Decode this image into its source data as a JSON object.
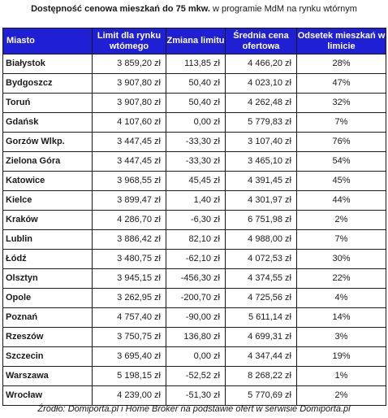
{
  "title": {
    "bold": "Dostępność cenowa mieszkań do 75 mkw.",
    "rest": " w programie MdM na rynku wtórnym"
  },
  "headers": [
    "Miasto",
    "Limit dla rynku wtómego",
    "Zmiana limitu",
    "Średnia cena ofertowa",
    "Odsetek mieszkań w limicie"
  ],
  "rows": [
    [
      "Białystok",
      "3 859,20 zł",
      "113,85 zł",
      "4 466,20 zł",
      "28%"
    ],
    [
      "Bydgoszcz",
      "3 907,80 zł",
      "50,40 zł",
      "4 023,10 zł",
      "47%"
    ],
    [
      "Toruń",
      "3 907,80 zł",
      "50,40 zł",
      "4 262,48 zł",
      "32%"
    ],
    [
      "Gdańsk",
      "4 107,60 zł",
      "0,00 zł",
      "5 779,83 zł",
      "7%"
    ],
    [
      "Gorzów Wlkp.",
      "3 447,45 zł",
      "-33,30 zł",
      "3 107,40 zł",
      "76%"
    ],
    [
      "Zielona Góra",
      "3 447,45 zł",
      "-33,30 zł",
      "3 465,10 zł",
      "54%"
    ],
    [
      "Katowice",
      "3 968,55 zł",
      "45,45 zł",
      "4 391,45 zł",
      "45%"
    ],
    [
      "Kielce",
      "3 899,47 zł",
      "1,40 zł",
      "4 301,97 zł",
      "44%"
    ],
    [
      "Kraków",
      "4 286,70 zł",
      "-6,30 zł",
      "6 751,98 zł",
      "2%"
    ],
    [
      "Lublin",
      "3 886,42 zł",
      "82,10 zł",
      "4 988,00 zł",
      "7%"
    ],
    [
      "Łódź",
      "3 480,75 zł",
      "-62,10 zł",
      "4 072,53 zł",
      "30%"
    ],
    [
      "Olsztyn",
      "3 945,15 zł",
      "-456,30 zł",
      "4 374,55 zł",
      "22%"
    ],
    [
      "Opole",
      "3 262,95 zł",
      "-200,70 zł",
      "4 725,56 zł",
      "4%"
    ],
    [
      "Poznań",
      "4 757,40 zł",
      "-90,00 zł",
      "5 611,14 zł",
      "14%"
    ],
    [
      "Rzeszów",
      "3 750,75 zł",
      "136,80 zł",
      "4 699,31 zł",
      "3%"
    ],
    [
      "Szczecin",
      "3 695,40 zł",
      "0,00 zł",
      "4 347,44 zł",
      "19%"
    ],
    [
      "Warszawa",
      "5 198,15 zł",
      "-52,52 zł",
      "8 268,22 zł",
      "1%"
    ],
    [
      "Wrocław",
      "4 239,00 zł",
      "-51,30 zł",
      "5 770,69 zł",
      "2%"
    ]
  ],
  "footer": "Źródło: Domiporta.pl i Home Broker na podstawie ofert w serwisie Domiporta.pl",
  "colors": {
    "header_bg": "#1f1fd6",
    "header_text": "#ffffff",
    "border": "#1a1a1a"
  }
}
